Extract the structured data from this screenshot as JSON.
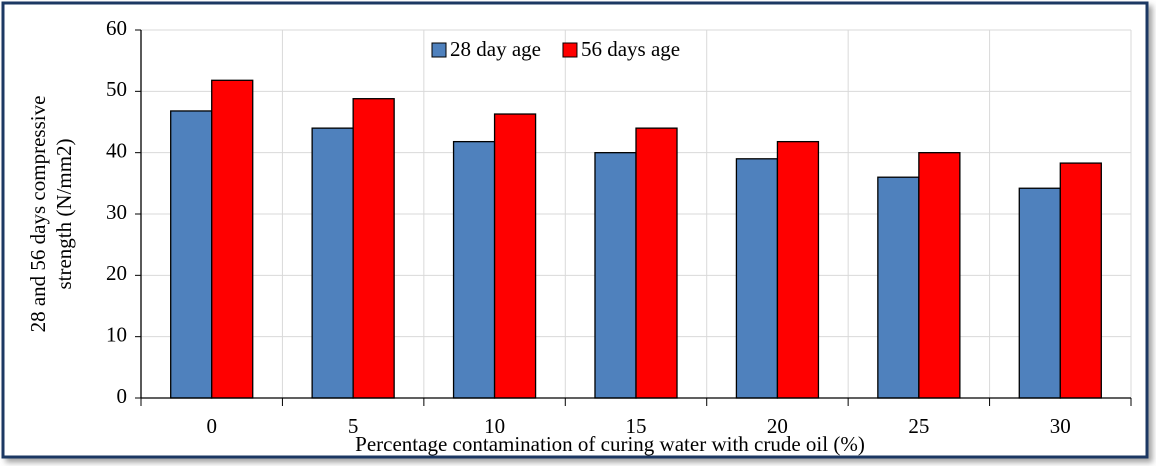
{
  "chart_data": {
    "type": "bar",
    "xlabel": "Percentage contamination of curing water with crude oil (%)",
    "ylabel": [
      "28 and 56 days compressive",
      "strength (N/mm2)"
    ],
    "categories": [
      "0",
      "5",
      "10",
      "15",
      "20",
      "25",
      "30"
    ],
    "series": [
      {
        "name": "28 day age",
        "color": "#4f81bd",
        "values": [
          46.8,
          44,
          41.8,
          40,
          39,
          36,
          34.2
        ]
      },
      {
        "name": "56 days age",
        "color": "#ff0000",
        "values": [
          51.8,
          48.8,
          46.3,
          44,
          41.8,
          40,
          38.3
        ]
      }
    ],
    "ylim": [
      0,
      60
    ],
    "yticks": [
      0,
      10,
      20,
      30,
      40,
      50,
      60
    ],
    "grid": true,
    "legend": "top"
  }
}
